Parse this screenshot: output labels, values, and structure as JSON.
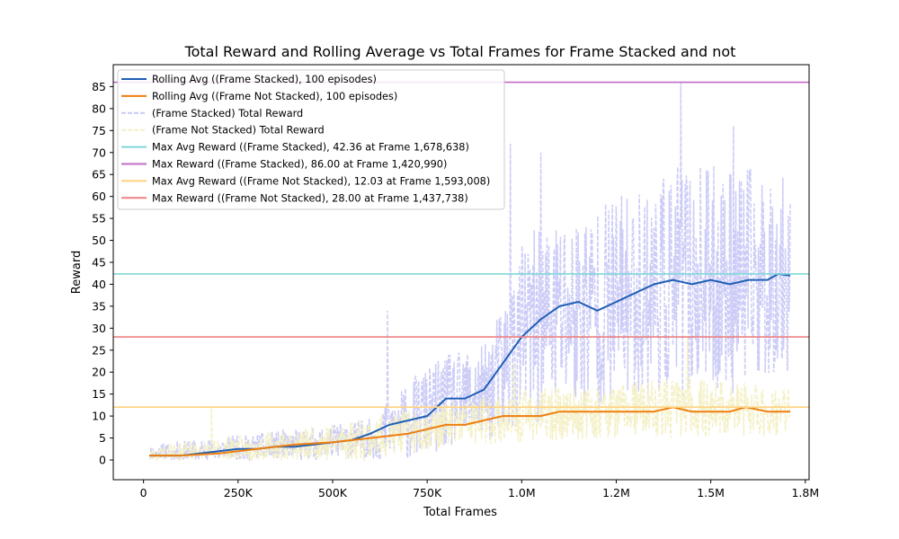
{
  "chart_data": {
    "type": "line",
    "title": "Total Reward and Rolling Average vs Total Frames for Frame Stacked and not",
    "xlabel": "Total Frames",
    "ylabel": "Reward",
    "xlim": [
      -80000,
      1760000
    ],
    "ylim": [
      -4.5,
      90
    ],
    "x_ticks": [
      0,
      250000,
      500000,
      750000,
      1000000,
      1250000,
      1500000,
      1750000
    ],
    "x_tick_labels": [
      "0",
      "250K",
      "500K",
      "750K",
      "1.0M",
      "1.2M",
      "1.5M",
      "1.8M"
    ],
    "y_ticks": [
      0,
      5,
      10,
      15,
      20,
      25,
      30,
      35,
      40,
      45,
      50,
      55,
      60,
      65,
      70,
      75,
      80,
      85
    ],
    "y_tick_labels": [
      "0",
      "5",
      "10",
      "15",
      "20",
      "25",
      "30",
      "35",
      "40",
      "45",
      "50",
      "55",
      "60",
      "65",
      "70",
      "75",
      "80",
      "85"
    ],
    "grid": false,
    "legend_position": "top-left",
    "series": [
      {
        "name": "Rolling Avg ((Frame Stacked), 100 episodes)",
        "kind": "rolling",
        "color": "#1f5fb4",
        "x": [
          15000,
          100000,
          200000,
          250000,
          300000,
          350000,
          400000,
          450000,
          500000,
          550000,
          600000,
          650000,
          700000,
          750000,
          800000,
          850000,
          900000,
          950000,
          1000000,
          1050000,
          1100000,
          1150000,
          1200000,
          1250000,
          1300000,
          1350000,
          1400000,
          1450000,
          1500000,
          1550000,
          1600000,
          1650000,
          1678638,
          1710000
        ],
        "y": [
          1,
          1,
          2,
          2.5,
          2.5,
          3,
          3,
          3.5,
          4,
          4.5,
          6,
          8,
          9,
          10,
          14,
          14,
          16,
          22,
          28,
          32,
          35,
          36,
          34,
          36,
          38,
          40,
          41,
          40,
          41,
          40,
          41,
          41,
          42.36,
          42
        ]
      },
      {
        "name": "Rolling Avg ((Frame Not Stacked), 100 episodes)",
        "kind": "rolling",
        "color": "#ee7f0e",
        "x": [
          15000,
          100000,
          200000,
          300000,
          350000,
          400000,
          500000,
          600000,
          700000,
          800000,
          850000,
          900000,
          950000,
          1000000,
          1050000,
          1100000,
          1150000,
          1200000,
          1250000,
          1300000,
          1350000,
          1400000,
          1450000,
          1500000,
          1550000,
          1593008,
          1650000,
          1710000
        ],
        "y": [
          1,
          1,
          1.5,
          2.5,
          3,
          3.5,
          4,
          5,
          6,
          8,
          8,
          9,
          10,
          10,
          10,
          11,
          11,
          11,
          11,
          11,
          11,
          12,
          11,
          11,
          11,
          12.03,
          11,
          11
        ]
      },
      {
        "name": "(Frame Stacked) Total Reward",
        "kind": "raw",
        "color": "#c9c9f7",
        "x_start": 15000,
        "x_end": 1710000,
        "count": 1050,
        "seed": 11,
        "envelope_x": [
          0,
          400000,
          600000,
          700000,
          800000,
          900000,
          950000,
          1000000,
          1100000,
          1200000,
          1300000,
          1400000,
          1500000,
          1600000,
          1710000
        ],
        "envelope_mid": [
          1,
          3,
          4.5,
          9,
          13,
          15,
          20,
          28,
          33,
          35,
          38,
          40,
          41,
          41,
          42
        ],
        "envelope_amp": [
          2.5,
          4,
          5,
          9,
          11,
          11,
          16,
          22,
          24,
          24,
          24,
          27,
          26,
          26,
          22
        ],
        "peaks_x": [
          645000,
          970000,
          1050000,
          1420990,
          1560000
        ],
        "peaks_y": [
          34,
          72,
          70,
          86,
          76
        ]
      },
      {
        "name": "(Frame Not Stacked) Total Reward",
        "kind": "raw",
        "color": "#f3f0c5",
        "x_start": 15000,
        "x_end": 1710000,
        "count": 1050,
        "seed": 23,
        "envelope_x": [
          0,
          300000,
          600000,
          800000,
          1000000,
          1200000,
          1400000,
          1710000
        ],
        "envelope_mid": [
          1,
          2.5,
          5,
          8,
          10,
          11,
          12,
          11
        ],
        "envelope_amp": [
          2,
          3.5,
          5,
          5,
          6,
          6,
          7,
          6
        ],
        "peaks_x": [
          180000,
          980000,
          1437738
        ],
        "peaks_y": [
          12,
          22,
          28
        ]
      }
    ],
    "reference_lines": [
      {
        "name": "Max Avg Reward ((Frame Stacked), 42.36 at Frame 1,678,638)",
        "y": 42.36,
        "color": "#7fd8da"
      },
      {
        "name": "Max Reward ((Frame Stacked), 86.00 at Frame 1,420,990)",
        "y": 86.0,
        "color": "#c06cc4"
      },
      {
        "name": "Max Avg Reward ((Frame Not Stacked), 12.03 at Frame 1,593,008)",
        "y": 12.03,
        "color": "#ffd27f"
      },
      {
        "name": "Max Reward ((Frame Not Stacked), 28.00 at Frame 1,437,738)",
        "y": 28.0,
        "color": "#ef8080"
      }
    ],
    "legend": [
      {
        "label": "Rolling Avg ((Frame Stacked), 100 episodes)",
        "color": "#1f5fb4",
        "style": "solid"
      },
      {
        "label": "Rolling Avg ((Frame Not Stacked), 100 episodes)",
        "color": "#ee7f0e",
        "style": "solid"
      },
      {
        "label": "(Frame Stacked) Total Reward",
        "color": "#c9c9f7",
        "style": "dashed"
      },
      {
        "label": "(Frame Not Stacked) Total Reward",
        "color": "#f3f0c5",
        "style": "dashed"
      },
      {
        "label": "Max Avg Reward ((Frame Stacked), 42.36 at Frame 1,678,638)",
        "color": "#7fd8da",
        "style": "solid"
      },
      {
        "label": "Max Reward ((Frame Stacked), 86.00 at Frame 1,420,990)",
        "color": "#c06cc4",
        "style": "solid"
      },
      {
        "label": "Max Avg Reward ((Frame Not Stacked), 12.03 at Frame 1,593,008)",
        "color": "#ffd27f",
        "style": "solid"
      },
      {
        "label": "Max Reward ((Frame Not Stacked), 28.00 at Frame 1,437,738)",
        "color": "#ef8080",
        "style": "solid"
      }
    ]
  }
}
